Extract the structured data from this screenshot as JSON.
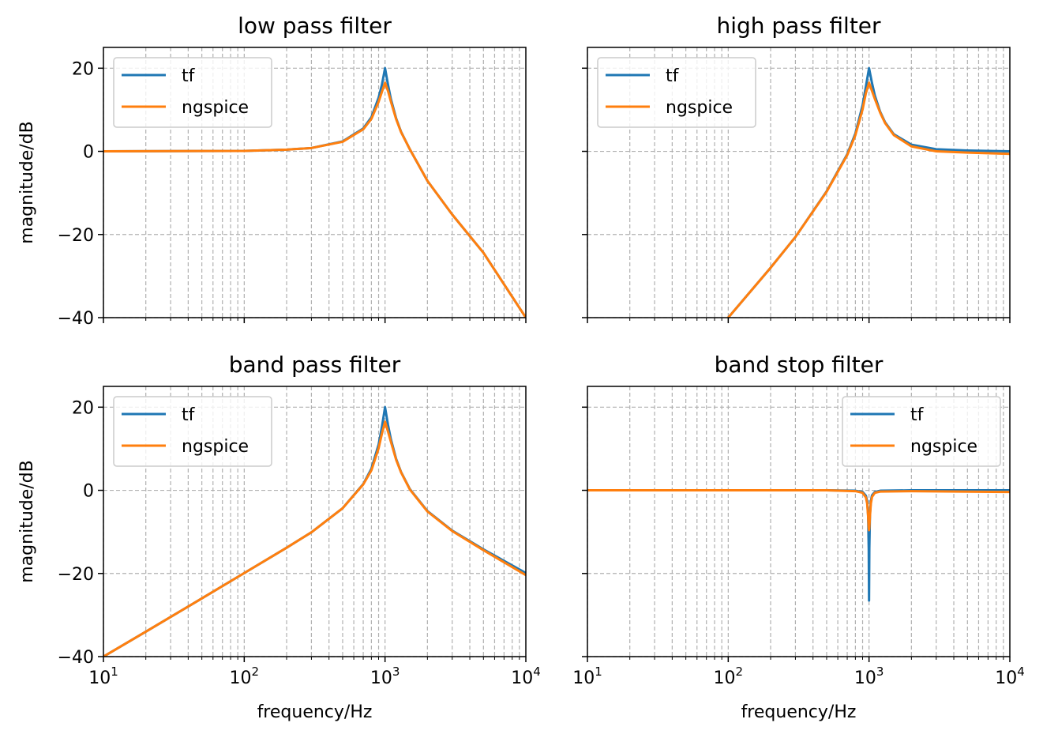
{
  "figure": {
    "colors": {
      "tf": "#1f77b4",
      "ngspice": "#ff7f0e",
      "grid": "#b0b0b0"
    }
  },
  "chart_data": [
    {
      "type": "line",
      "title": "low pass filter",
      "xlabel": "",
      "ylabel": "magnitude/dB",
      "xscale": "log",
      "xlim": [
        10,
        10000
      ],
      "ylim": [
        -40,
        25
      ],
      "xticks": [
        10,
        100,
        1000,
        10000
      ],
      "yticks": [
        -40,
        -20,
        0,
        20
      ],
      "show_x_ticklabels": false,
      "show_y_ticklabels": true,
      "grid": "both, dashed",
      "legend": "upper left",
      "series": [
        {
          "name": "tf",
          "x": [
            10,
            100,
            200,
            300,
            500,
            700,
            800,
            900,
            950,
            1000,
            1050,
            1100,
            1200,
            1300,
            1500,
            2000,
            3000,
            5000,
            10000
          ],
          "values": [
            0.0,
            0.1,
            0.4,
            0.8,
            2.4,
            5.5,
            8.2,
            12.9,
            16.0,
            20.0,
            16.0,
            12.6,
            7.9,
            4.7,
            0.5,
            -7.1,
            -15.2,
            -24.4,
            -40.0
          ]
        },
        {
          "name": "ngspice",
          "x": [
            10,
            100,
            200,
            300,
            500,
            700,
            800,
            900,
            950,
            1000,
            1050,
            1100,
            1200,
            1300,
            1500,
            2000,
            3000,
            5000,
            10000
          ],
          "values": [
            0.0,
            0.1,
            0.4,
            0.8,
            2.3,
            5.3,
            7.8,
            11.9,
            14.3,
            16.5,
            14.5,
            12.0,
            7.7,
            4.6,
            0.5,
            -7.1,
            -15.2,
            -24.4,
            -40.0
          ]
        }
      ]
    },
    {
      "type": "line",
      "title": "high pass filter",
      "xlabel": "",
      "ylabel": "",
      "xscale": "log",
      "xlim": [
        10,
        10000
      ],
      "ylim": [
        -40,
        25
      ],
      "xticks": [
        10,
        100,
        1000,
        10000
      ],
      "yticks": [
        -40,
        -20,
        0,
        20
      ],
      "show_x_ticklabels": false,
      "show_y_ticklabels": false,
      "grid": "both, dashed",
      "legend": "upper left",
      "series": [
        {
          "name": "tf",
          "x": [
            100,
            200,
            300,
            500,
            700,
            800,
            900,
            950,
            1000,
            1050,
            1100,
            1200,
            1300,
            1500,
            2000,
            3000,
            5000,
            10000
          ],
          "values": [
            -40.0,
            -28.0,
            -20.6,
            -9.6,
            -0.7,
            4.3,
            11.1,
            15.6,
            20.0,
            16.4,
            13.4,
            9.5,
            7.0,
            4.1,
            1.6,
            0.5,
            0.2,
            0.0
          ]
        },
        {
          "name": "ngspice",
          "x": [
            100,
            200,
            300,
            500,
            700,
            800,
            900,
            950,
            1000,
            1050,
            1100,
            1200,
            1300,
            1500,
            2000,
            3000,
            5000,
            10000
          ],
          "values": [
            -40.0,
            -28.0,
            -20.6,
            -9.7,
            -0.9,
            3.9,
            10.1,
            14.0,
            16.5,
            14.5,
            12.6,
            9.3,
            6.8,
            3.9,
            1.2,
            0.0,
            -0.3,
            -0.6
          ]
        }
      ]
    },
    {
      "type": "line",
      "title": "band pass filter",
      "xlabel": "frequency/Hz",
      "ylabel": "magnitude/dB",
      "xscale": "log",
      "xlim": [
        10,
        10000
      ],
      "ylim": [
        -40,
        25
      ],
      "xticks": [
        10,
        100,
        1000,
        10000
      ],
      "yticks": [
        -40,
        -20,
        0,
        20
      ],
      "show_x_ticklabels": true,
      "show_y_ticklabels": true,
      "grid": "both, dashed",
      "legend": "upper left",
      "series": [
        {
          "name": "tf",
          "x": [
            10,
            20,
            50,
            100,
            200,
            300,
            500,
            700,
            800,
            900,
            950,
            1000,
            1050,
            1100,
            1200,
            1300,
            1500,
            2000,
            3000,
            5000,
            10000
          ],
          "values": [
            -40.0,
            -34.0,
            -26.0,
            -19.9,
            -13.8,
            -10.1,
            -4.3,
            1.5,
            5.2,
            11.0,
            15.2,
            20.0,
            15.7,
            12.3,
            7.5,
            4.4,
            0.3,
            -5.0,
            -9.7,
            -14.2,
            -19.9
          ]
        },
        {
          "name": "ngspice",
          "x": [
            10,
            20,
            50,
            100,
            200,
            300,
            500,
            700,
            800,
            900,
            950,
            1000,
            1050,
            1100,
            1200,
            1300,
            1500,
            2000,
            3000,
            5000,
            10000
          ],
          "values": [
            -40.0,
            -34.0,
            -26.0,
            -19.9,
            -13.8,
            -10.1,
            -4.3,
            1.4,
            4.8,
            10.1,
            13.6,
            16.5,
            14.1,
            11.7,
            7.3,
            4.3,
            0.2,
            -5.1,
            -9.8,
            -14.4,
            -20.4
          ]
        }
      ]
    },
    {
      "type": "line",
      "title": "band stop filter",
      "xlabel": "frequency/Hz",
      "ylabel": "",
      "xscale": "log",
      "xlim": [
        10,
        10000
      ],
      "ylim": [
        -40,
        25
      ],
      "xticks": [
        10,
        100,
        1000,
        10000
      ],
      "yticks": [
        -40,
        -20,
        0,
        20
      ],
      "show_x_ticklabels": true,
      "show_y_ticklabels": false,
      "grid": "both, dashed",
      "legend": "upper right",
      "series": [
        {
          "name": "tf",
          "x": [
            10,
            500,
            800,
            900,
            950,
            970,
            985,
            995,
            1000,
            1005,
            1015,
            1030,
            1050,
            1100,
            1200,
            2000,
            10000
          ],
          "values": [
            0.0,
            0.0,
            -0.1,
            -0.4,
            -1.3,
            -2.6,
            -5.9,
            -14.0,
            -26.5,
            -14.0,
            -5.9,
            -2.6,
            -1.2,
            -0.4,
            -0.1,
            0.0,
            0.0
          ]
        },
        {
          "name": "ngspice",
          "x": [
            10,
            500,
            800,
            900,
            950,
            970,
            985,
            995,
            1000,
            1005,
            1015,
            1030,
            1050,
            1100,
            1200,
            2000,
            10000
          ],
          "values": [
            0.0,
            0.0,
            -0.2,
            -0.6,
            -1.7,
            -3.2,
            -6.3,
            -9.0,
            -9.6,
            -9.0,
            -6.3,
            -3.2,
            -1.6,
            -0.6,
            -0.3,
            -0.2,
            -0.4
          ]
        }
      ]
    }
  ]
}
